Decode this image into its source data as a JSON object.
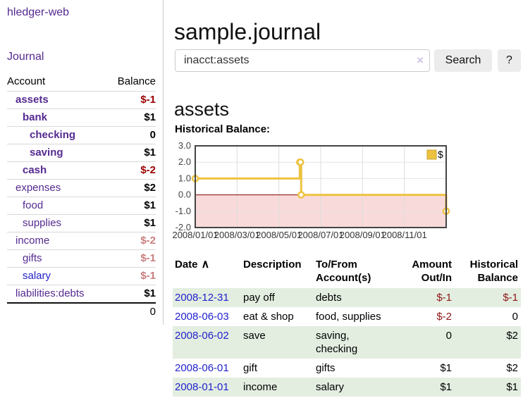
{
  "app": {
    "title": "hledger-web"
  },
  "nav": {
    "journal_label": "Journal"
  },
  "sidebar": {
    "header": {
      "account": "Account",
      "balance": "Balance"
    },
    "accounts": [
      {
        "name": "assets",
        "balance": "$-1"
      },
      {
        "name": "bank",
        "balance": "$1"
      },
      {
        "name": "checking",
        "balance": "0"
      },
      {
        "name": "saving",
        "balance": "$1"
      },
      {
        "name": "cash",
        "balance": "$-2"
      },
      {
        "name": "expenses",
        "balance": "$2"
      },
      {
        "name": "food",
        "balance": "$1"
      },
      {
        "name": "supplies",
        "balance": "$1"
      },
      {
        "name": "income",
        "balance": "$-2"
      },
      {
        "name": "gifts",
        "balance": "$-1"
      },
      {
        "name": "salary",
        "balance": "$-1"
      },
      {
        "name": "liabilities:debts",
        "balance": "$1"
      }
    ],
    "total": "0"
  },
  "header": {
    "title": "sample.journal"
  },
  "search": {
    "value": "inacct:assets",
    "clear_icon": "×",
    "button_label": "Search",
    "help_label": "?"
  },
  "account_page": {
    "title": "assets",
    "chart_heading": "Historical Balance:"
  },
  "chart_data": {
    "type": "line",
    "style": "step",
    "title": "Historical Balance:",
    "series": [
      {
        "name": "$",
        "color": "#EDC240",
        "points": [
          {
            "x": "2008-01-01",
            "y": 1
          },
          {
            "x": "2008-06-01",
            "y": 2
          },
          {
            "x": "2008-06-02",
            "y": 2
          },
          {
            "x": "2008-06-03",
            "y": 0
          },
          {
            "x": "2008-12-31",
            "y": -1
          }
        ]
      }
    ],
    "ylim": [
      -2.0,
      3.0
    ],
    "yticks": [
      3.0,
      2.0,
      1.0,
      0.0,
      -1.0,
      -2.0
    ],
    "xticks": [
      "2008/01/01",
      "2008/03/01",
      "2008/05/01",
      "2008/07/01",
      "2008/09/01",
      "2008/11/01"
    ],
    "grid": true,
    "legend": {
      "label": "$",
      "position": "top-right"
    },
    "negative_region_color": "#f9dada",
    "zero_line_color": "#800000"
  },
  "register": {
    "columns": {
      "date": "Date",
      "description": "Description",
      "accounts": "To/From Account(s)",
      "amount": "Amount Out/In",
      "balance": "Historical Balance"
    },
    "sort_indicator": "∧",
    "rows": [
      {
        "date": "2008-12-31",
        "description": "pay off",
        "accounts": "debts",
        "amount": "$-1",
        "balance": "$-1"
      },
      {
        "date": "2008-06-03",
        "description": "eat & shop",
        "accounts": "food, supplies",
        "amount": "$-2",
        "balance": "0"
      },
      {
        "date": "2008-06-02",
        "description": "save",
        "accounts": "saving, checking",
        "amount": "0",
        "balance": "$2"
      },
      {
        "date": "2008-06-01",
        "description": "gift",
        "accounts": "gifts",
        "amount": "$1",
        "balance": "$2"
      },
      {
        "date": "2008-01-01",
        "description": "income",
        "accounts": "salary",
        "amount": "$1",
        "balance": "$1"
      }
    ]
  },
  "colors": {
    "link_purple": "#552a90",
    "link_blue": "#2222cc",
    "negative_strong": "#9b0000",
    "negative_light": "#c87d7d",
    "row_green": "#e3eee1",
    "chart_gold": "#EDC240",
    "chart_negative_fill": "#f9dada",
    "chart_zero_line": "#800000"
  }
}
